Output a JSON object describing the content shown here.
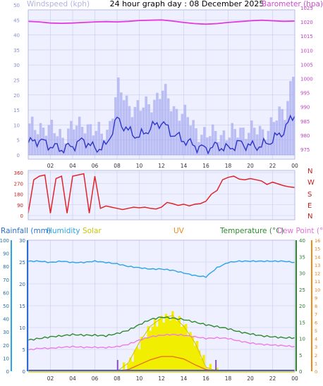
{
  "title": "24 hour graph day : 08 December 2025",
  "colors": {
    "wind": "#2e35c8",
    "gust": "#a9aef0",
    "barometer": "#e23be0",
    "direction": "#e0252b",
    "rain": "#2a7fd8",
    "humidity": "#2aa3e8",
    "solar": "#e8e800",
    "solar_fill": "#f2ee00",
    "uv": "#f08a18",
    "temperature": "#2f8a2f",
    "dew_point": "#ee7ae8",
    "panel_bg": "#eef0ff",
    "grid": "#c8ccee"
  },
  "x_ticks": [
    "02",
    "04",
    "06",
    "08",
    "10",
    "12",
    "14",
    "16",
    "18",
    "20",
    "22",
    "00"
  ],
  "chart_data": [
    {
      "type": "line",
      "name": "wind-barometer",
      "left_axis": {
        "label": "Windspeed (kph)",
        "ticks": [
          0,
          5,
          10,
          15,
          20,
          25,
          30,
          35,
          40,
          45,
          50
        ],
        "ylim": [
          0,
          50
        ]
      },
      "right_axis": {
        "label": "Barometer (hpa)",
        "ticks": [
          975,
          980,
          985,
          990,
          995,
          1000,
          1005,
          1010,
          1015,
          1020,
          1025
        ],
        "ylim": [
          973,
          1026
        ]
      },
      "x_hours": [
        0,
        1,
        2,
        3,
        4,
        5,
        6,
        7,
        8,
        9,
        10,
        11,
        12,
        13,
        14,
        15,
        16,
        17,
        18,
        19,
        20,
        21,
        22,
        23,
        24
      ],
      "series": [
        {
          "key": "wind",
          "axis": "left",
          "values": [
            4,
            5,
            3,
            2,
            3,
            5,
            2,
            3,
            12,
            8,
            6,
            9,
            11,
            7,
            5,
            3,
            2,
            3,
            2,
            4,
            3,
            3,
            5,
            8,
            14
          ]
        },
        {
          "key": "gust",
          "axis": "left",
          "values": [
            9,
            10,
            8,
            7,
            9,
            11,
            7,
            8,
            22,
            17,
            15,
            18,
            21,
            16,
            13,
            9,
            6,
            8,
            6,
            9,
            8,
            8,
            11,
            15,
            32
          ]
        },
        {
          "key": "barometer",
          "axis": "right",
          "values": [
            1020.2,
            1020.0,
            1019.6,
            1019.5,
            1019.6,
            1019.8,
            1020.0,
            1020.1,
            1020.0,
            1020.2,
            1020.5,
            1020.6,
            1020.7,
            1020.3,
            1019.8,
            1019.4,
            1019.2,
            1019.4,
            1019.8,
            1020.1,
            1020.4,
            1020.6,
            1020.4,
            1020.2,
            1020.3
          ]
        }
      ]
    },
    {
      "type": "line",
      "name": "wind-direction",
      "left_axis": {
        "ticks": [
          0,
          90,
          180,
          270,
          360
        ],
        "ylim": [
          0,
          360
        ]
      },
      "compass_labels": [
        "N",
        "W",
        "S",
        "E",
        "N"
      ],
      "x_hours": [
        0,
        0.5,
        1,
        1.5,
        2,
        2.5,
        3,
        3.5,
        4,
        4.5,
        5,
        5.5,
        6,
        6.5,
        7,
        7.5,
        8,
        8.5,
        9,
        9.5,
        10,
        10.5,
        11,
        11.5,
        12,
        12.5,
        13,
        13.5,
        14,
        14.5,
        15,
        15.5,
        16,
        16.5,
        17,
        17.5,
        18,
        18.5,
        19,
        19.5,
        20,
        20.5,
        21,
        21.5,
        22,
        22.5,
        23,
        23.5,
        24
      ],
      "series": [
        {
          "key": "direction",
          "axis": "left",
          "values": [
            20,
            300,
            330,
            340,
            20,
            310,
            330,
            20,
            330,
            340,
            350,
            20,
            330,
            60,
            80,
            70,
            60,
            50,
            60,
            70,
            65,
            70,
            60,
            55,
            70,
            110,
            100,
            85,
            95,
            80,
            95,
            100,
            120,
            180,
            210,
            300,
            320,
            330,
            305,
            300,
            310,
            300,
            290,
            260,
            280,
            265,
            250,
            240,
            235
          ]
        }
      ]
    },
    {
      "type": "line",
      "name": "climate",
      "legend": [
        "Rainfall (mm)",
        "Humidity",
        "Solar",
        "UV",
        "Temperature (°C)",
        "Dew Point (°C)"
      ],
      "axes": {
        "humidity_ticks": [
          0,
          10,
          20,
          30,
          40,
          50,
          60,
          70,
          80,
          90,
          100
        ],
        "rainfall_ticks": [
          0,
          5,
          10,
          15,
          20,
          25,
          30
        ],
        "temperature_ticks": [
          0,
          5,
          10,
          15,
          20,
          25,
          30,
          35,
          40
        ],
        "uv_ticks": [
          0,
          1,
          2,
          3,
          4,
          5,
          6,
          7,
          8,
          9,
          10,
          11,
          12,
          13,
          14,
          15,
          16
        ]
      },
      "x_hours": [
        0,
        1,
        2,
        3,
        4,
        5,
        6,
        7,
        8,
        9,
        10,
        11,
        12,
        13,
        14,
        15,
        16,
        17,
        18,
        19,
        20,
        21,
        22,
        23,
        24
      ],
      "series": [
        {
          "key": "humidity",
          "axis": "humidity",
          "values": [
            84,
            84,
            83,
            84,
            83,
            83,
            84,
            83,
            82,
            80,
            79,
            78,
            78,
            77,
            75,
            73,
            72,
            79,
            83,
            84,
            84,
            84,
            84,
            84,
            83
          ]
        },
        {
          "key": "temperature",
          "axis": "temperature",
          "values": [
            9.5,
            10.0,
            10.5,
            10.8,
            11.2,
            11.0,
            11.0,
            10.8,
            11.5,
            12.5,
            14.2,
            15.8,
            16.5,
            16.2,
            15.8,
            15.0,
            14.2,
            13.6,
            13.0,
            12.0,
            11.4,
            10.8,
            10.5,
            10.2,
            10.2
          ]
        },
        {
          "key": "dew_point",
          "axis": "temperature",
          "values": [
            6.5,
            7.0,
            7.0,
            7.3,
            7.5,
            7.3,
            7.3,
            7.2,
            7.5,
            8.2,
            9.5,
            10.5,
            11.0,
            11.2,
            11.0,
            10.5,
            10.0,
            10.2,
            10.0,
            9.2,
            8.6,
            8.2,
            8.0,
            7.8,
            7.5
          ]
        },
        {
          "key": "solar",
          "axis": "uv",
          "values": [
            0,
            0,
            0,
            0,
            0,
            0,
            0,
            0,
            0,
            1.0,
            3.5,
            5.5,
            6.5,
            6.8,
            5.5,
            3.5,
            0.5,
            0,
            0,
            0,
            0,
            0,
            0,
            0,
            0
          ]
        },
        {
          "key": "uv",
          "axis": "uv",
          "values": [
            0,
            0,
            0,
            0,
            0,
            0,
            0,
            0,
            0,
            0.2,
            0.8,
            1.4,
            1.8,
            1.8,
            1.5,
            0.8,
            0.2,
            0,
            0,
            0,
            0,
            0,
            0,
            0,
            0
          ]
        },
        {
          "key": "rain",
          "axis": "rainfall",
          "values": [
            0,
            0,
            0,
            0,
            0,
            0,
            0,
            0,
            0,
            0,
            0,
            0,
            0,
            0,
            0,
            0,
            0,
            0,
            0,
            0,
            0,
            0,
            0,
            0,
            0
          ]
        }
      ],
      "sunrise_hour": 8.05,
      "sunset_hour": 16.9
    }
  ]
}
